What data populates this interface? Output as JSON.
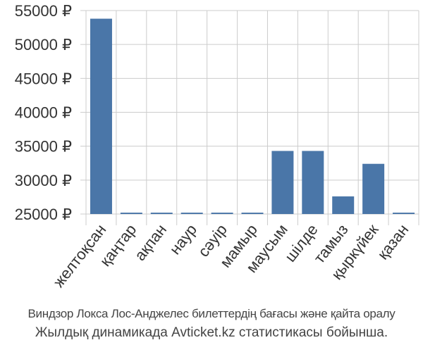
{
  "chart_data": {
    "type": "bar",
    "categories": [
      "желтоқсан",
      "қаңтар",
      "ақпан",
      "наур",
      "сәуір",
      "мамыр",
      "маусым",
      "шілде",
      "тамыз",
      "қыркүйек",
      "қазан"
    ],
    "values": [
      53800,
      25200,
      25200,
      25200,
      25200,
      25200,
      34300,
      34300,
      27600,
      32400,
      25200
    ],
    "ylim": [
      25000,
      55000
    ],
    "yticks": [
      25000,
      30000,
      35000,
      40000,
      45000,
      50000,
      55000
    ],
    "ytick_labels": [
      "25000 ₽",
      "30000 ₽",
      "35000 ₽",
      "40000 ₽",
      "45000 ₽",
      "50000 ₽",
      "55000 ₽"
    ],
    "grid": true,
    "bar_color": "#4a76a8"
  },
  "caption": {
    "line1": "Виндзор Локса Лос-Анджелес билеттердің бағасы және қайта оралу",
    "line2": "Жылдық динамикада Avticket.kz статистикасы бойынша."
  }
}
